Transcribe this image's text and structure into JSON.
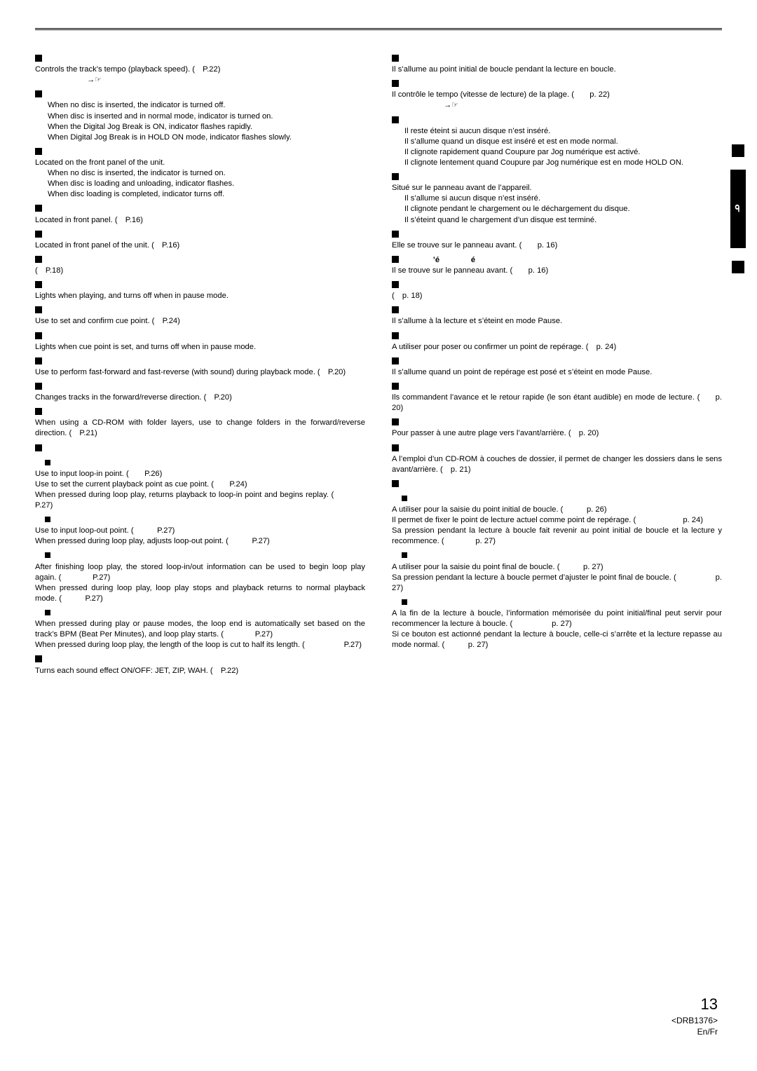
{
  "footer": {
    "page": "13",
    "code": "<DRB1376>",
    "langs": "En/Fr"
  },
  "tab": {
    "label": "ᓂ"
  },
  "left": [
    {
      "t": "h",
      "txt": ""
    },
    {
      "t": "p",
      "txt": "Controls the track’s tempo (playback speed). ( P.22)"
    },
    {
      "t": "p",
      "cls": "indent",
      "txt": "     →☞"
    },
    {
      "t": "h",
      "txt": ""
    },
    {
      "t": "p",
      "cls": "indent",
      "txt": "When no disc is inserted, the indicator is turned off."
    },
    {
      "t": "p",
      "cls": "indent",
      "txt": "When disc is inserted and in normal mode, indicator is turned on."
    },
    {
      "t": "p",
      "cls": "indent",
      "txt": "When the Digital Jog Break is ON, indicator flashes rapidly."
    },
    {
      "t": "p",
      "cls": "indent",
      "txt": "When Digital Jog Break is in HOLD ON mode, indicator flashes slowly."
    },
    {
      "t": "h",
      "txt": ""
    },
    {
      "t": "p",
      "txt": "Located on the front panel of the unit."
    },
    {
      "t": "p",
      "cls": "indent",
      "txt": "When no disc is inserted, the indicator is turned on."
    },
    {
      "t": "p",
      "cls": "indent",
      "txt": "When disc is loading and unloading, indicator flashes."
    },
    {
      "t": "p",
      "cls": "indent",
      "txt": "When disc loading is completed, indicator turns off."
    },
    {
      "t": "h",
      "txt": ""
    },
    {
      "t": "p",
      "txt": "Located in front panel. ( P.16)"
    },
    {
      "t": "h",
      "txt": ""
    },
    {
      "t": "p",
      "txt": "Located in front panel of the unit. ( P.16)"
    },
    {
      "t": "h",
      "txt": ""
    },
    {
      "t": "p",
      "txt": "( P.18)"
    },
    {
      "t": "h",
      "txt": ""
    },
    {
      "t": "p",
      "txt": "Lights when playing, and turns off when in pause mode."
    },
    {
      "t": "h",
      "txt": ""
    },
    {
      "t": "p",
      "txt": "Use to set and confirm cue point. ( P.24)"
    },
    {
      "t": "h",
      "txt": ""
    },
    {
      "t": "p",
      "txt": "Lights when cue point is set, and turns off when in pause mode."
    },
    {
      "t": "h",
      "txt": ""
    },
    {
      "t": "p",
      "txt": "Use to perform fast-forward and fast-reverse (with sound) during playback mode. ( P.20)"
    },
    {
      "t": "h",
      "txt": ""
    },
    {
      "t": "p",
      "txt": "Changes tracks in the forward/reverse direction. ( P.20)"
    },
    {
      "t": "h",
      "txt": ""
    },
    {
      "t": "p",
      "txt": "When using a CD-ROM with folder layers, use to change folders in the forward/reverse direction. ( P.21)"
    },
    {
      "t": "h",
      "txt": ""
    },
    {
      "t": "sub",
      "txt": ""
    },
    {
      "t": "p",
      "txt": "Use to input loop-in point. (  P.26)"
    },
    {
      "t": "p",
      "txt": "Use to set the current playback point as cue point. (  P.24)"
    },
    {
      "t": "p",
      "txt": "When pressed during loop play, returns playback to loop-in point and begins replay. (    P.27)"
    },
    {
      "t": "sub",
      "txt": ""
    },
    {
      "t": "p",
      "txt": "Use to input loop-out point. (   P.27)"
    },
    {
      "t": "p",
      "txt": "When pressed during loop play, adjusts loop-out point. (   P.27)"
    },
    {
      "t": "sub",
      "txt": ""
    },
    {
      "t": "p",
      "txt": "After finishing loop play, the stored loop-in/out information can be used to begin loop play again. (    P.27)"
    },
    {
      "t": "p",
      "txt": "When pressed during loop play, loop play stops and playback returns to normal playback mode. (   P.27)"
    },
    {
      "t": "sub",
      "txt": ""
    },
    {
      "t": "p",
      "txt": "When pressed during play or pause modes, the loop end is automatically set based on the track’s BPM (Beat Per Minutes), and loop play starts. (    P.27)"
    },
    {
      "t": "p",
      "txt": "When pressed during loop play, the length of the loop is cut to half its length. (     P.27)"
    },
    {
      "t": "h",
      "txt": ""
    },
    {
      "t": "p",
      "txt": "Turns each sound effect ON/OFF: JET, ZIP, WAH. ( P.22)"
    }
  ],
  "right": [
    {
      "t": "h",
      "txt": ""
    },
    {
      "t": "p",
      "txt": "Il s’allume au point initial de boucle pendant la lecture en boucle."
    },
    {
      "t": "h",
      "txt": ""
    },
    {
      "t": "p",
      "txt": "Il contrôle le tempo (vitesse de lecture) de la plage. (  p. 22)"
    },
    {
      "t": "p",
      "cls": "indent",
      "txt": "     →☞"
    },
    {
      "t": "h",
      "txt": ""
    },
    {
      "t": "p",
      "cls": "indent",
      "txt": "Il reste éteint si aucun disque n’est inséré."
    },
    {
      "t": "p",
      "cls": "indent",
      "txt": "Il s’allume quand un disque est inséré et est en mode normal."
    },
    {
      "t": "p",
      "cls": "indent",
      "txt": "Il clignote rapidement quand Coupure par Jog numérique est activé."
    },
    {
      "t": "p",
      "cls": "indent",
      "txt": "Il clignote lentement quand Coupure par Jog numérique est en mode HOLD ON."
    },
    {
      "t": "h",
      "txt": ""
    },
    {
      "t": "p",
      "txt": "Situé sur le panneau avant de l’appareil."
    },
    {
      "t": "p",
      "cls": "indent",
      "txt": "Il s’allume si aucun disque n’est inséré."
    },
    {
      "t": "p",
      "cls": "indent",
      "txt": "Il clignote pendant le chargement ou le déchargement du disque."
    },
    {
      "t": "p",
      "cls": "indent",
      "txt": "Il s’éteint quand le chargement d’un disque est terminé."
    },
    {
      "t": "h",
      "txt": ""
    },
    {
      "t": "p",
      "txt": "Elle se trouve sur le panneau avant. (  p. 16)"
    },
    {
      "t": "h",
      "txt": "    ’é    é"
    },
    {
      "t": "p",
      "txt": "Il se trouve sur le panneau avant. (  p. 16)"
    },
    {
      "t": "h",
      "txt": ""
    },
    {
      "t": "p",
      "txt": "( p. 18)"
    },
    {
      "t": "h",
      "txt": ""
    },
    {
      "t": "p",
      "txt": "Il s’allume à la lecture et s’éteint en mode Pause."
    },
    {
      "t": "h",
      "txt": ""
    },
    {
      "t": "p",
      "txt": "A utiliser pour poser ou confirmer un point de repérage. ( p. 24)"
    },
    {
      "t": "h",
      "txt": ""
    },
    {
      "t": "p",
      "txt": "Il s’allume quand un point de repérage est posé et s’éteint en mode Pause."
    },
    {
      "t": "h",
      "txt": ""
    },
    {
      "t": "p",
      "txt": "Ils commandent l’avance et le retour rapide (le son étant audible) en mode de lecture. (  p. 20)"
    },
    {
      "t": "h",
      "txt": ""
    },
    {
      "t": "p",
      "txt": "Pour passer à une autre plage vers l’avant/arrière. ( p. 20)"
    },
    {
      "t": "h",
      "txt": ""
    },
    {
      "t": "p",
      "txt": "A l’emploi d’un CD-ROM à couches de dossier, il permet de changer les dossiers dans le sens avant/arrière. ( p. 21)"
    },
    {
      "t": "h",
      "txt": ""
    },
    {
      "t": "sub",
      "txt": ""
    },
    {
      "t": "p",
      "txt": "A utiliser pour la saisie du point initial de boucle. (   p. 26)"
    },
    {
      "t": "p",
      "txt": "Il permet de fixer le point de lecture actuel comme point de repérage. (      p. 24)"
    },
    {
      "t": "p",
      "txt": "Sa pression pendant la lecture à boucle fait revenir au point initial de boucle et la lecture y recommence. (    p. 27)"
    },
    {
      "t": "sub",
      "txt": ""
    },
    {
      "t": "p",
      "txt": "A utiliser pour la saisie du point final de boucle. (   p. 27)"
    },
    {
      "t": "p",
      "txt": "Sa pression pendant la lecture à boucle permet d’ajuster le point final de boucle. (     p. 27)"
    },
    {
      "t": "sub",
      "txt": ""
    },
    {
      "t": "p",
      "txt": "A la fin de la lecture à boucle, l’information mémorisée du point initial/final peut servir pour recommencer la lecture à boucle. (     p. 27)"
    },
    {
      "t": "p",
      "txt": "Si ce bouton est actionné pendant la lecture à boucle, celle-ci s’arrête et la lecture repasse au mode normal. (   p. 27)"
    }
  ]
}
